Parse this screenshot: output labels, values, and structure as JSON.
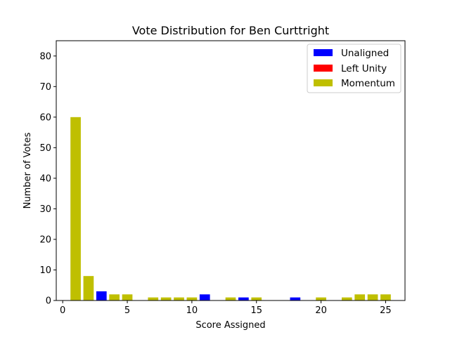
{
  "chart_data": {
    "type": "bar",
    "title": "Vote Distribution for Ben Curttright",
    "xlabel": "Score Assigned",
    "ylabel": "Number of Votes",
    "xlim": [
      -0.5,
      26.5
    ],
    "ylim": [
      0,
      85
    ],
    "xticks": [
      0,
      5,
      10,
      15,
      20,
      25
    ],
    "yticks": [
      0,
      10,
      20,
      30,
      40,
      50,
      60,
      70,
      80
    ],
    "grid": false,
    "legend_position": "top-right",
    "series": [
      {
        "name": "Unaligned",
        "color": "#0000ff",
        "points": [
          [
            3,
            3
          ],
          [
            11,
            2
          ],
          [
            14,
            1
          ],
          [
            18,
            1
          ]
        ]
      },
      {
        "name": "Left Unity",
        "color": "#ff0000",
        "points": []
      },
      {
        "name": "Momentum",
        "color": "#bfbf00",
        "points": [
          [
            1,
            60
          ],
          [
            2,
            8
          ],
          [
            4,
            2
          ],
          [
            5,
            2
          ],
          [
            7,
            1
          ],
          [
            8,
            1
          ],
          [
            9,
            1
          ],
          [
            10,
            1
          ],
          [
            13,
            1
          ],
          [
            15,
            1
          ],
          [
            20,
            1
          ],
          [
            22,
            1
          ],
          [
            23,
            2
          ],
          [
            24,
            2
          ],
          [
            25,
            2
          ]
        ]
      }
    ]
  }
}
